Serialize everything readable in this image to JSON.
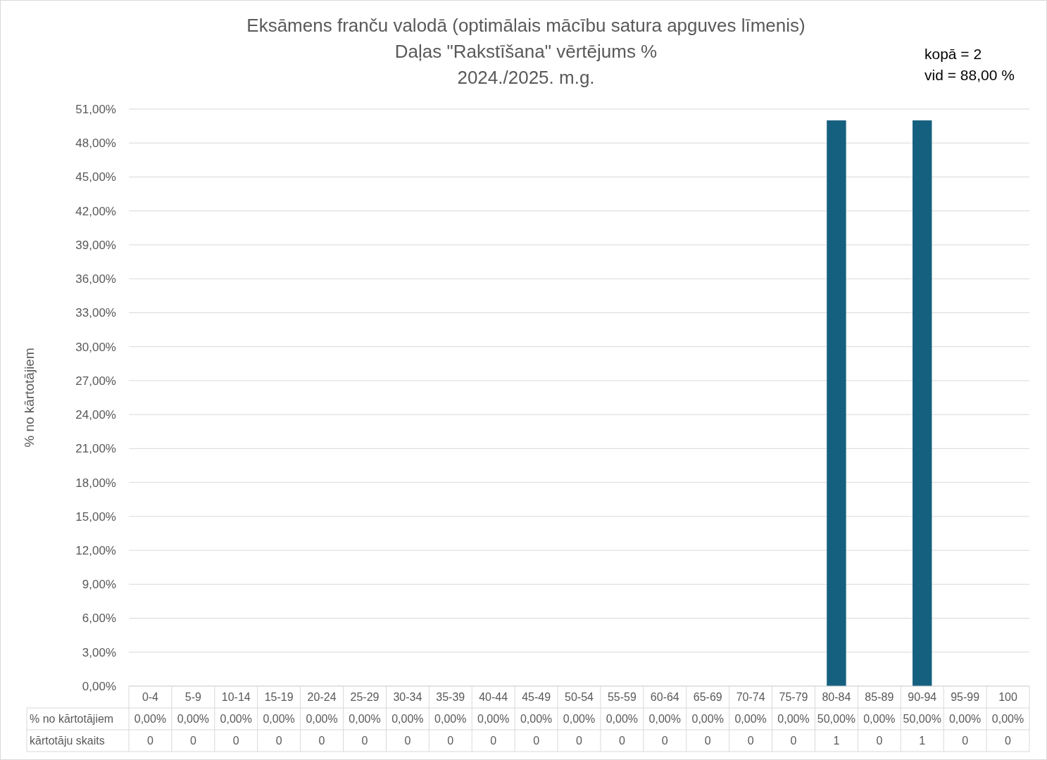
{
  "chart_data": {
    "type": "bar",
    "title": "Eksāmens franču valodā (optimālais mācību satura apguves līmenis)",
    "subtitle": "Daļas \"Rakstīšana\" vērtējums %\n2024./2025. m.g.",
    "ylabel": "% no kārtotājiem",
    "categories": [
      "0-4",
      "5-9",
      "10-14",
      "15-19",
      "20-24",
      "25-29",
      "30-34",
      "35-39",
      "40-44",
      "45-49",
      "50-54",
      "55-59",
      "60-64",
      "65-69",
      "70-74",
      "75-79",
      "80-84",
      "85-89",
      "90-94",
      "95-99",
      "100"
    ],
    "series": [
      {
        "name": "% no kārtotājiem",
        "color": "#16607f",
        "values": [
          0,
          0,
          0,
          0,
          0,
          0,
          0,
          0,
          0,
          0,
          0,
          0,
          0,
          0,
          0,
          0,
          50,
          0,
          50,
          0,
          0
        ],
        "value_labels": [
          "0,00%",
          "0,00%",
          "0,00%",
          "0,00%",
          "0,00%",
          "0,00%",
          "0,00%",
          "0,00%",
          "0,00%",
          "0,00%",
          "0,00%",
          "0,00%",
          "0,00%",
          "0,00%",
          "0,00%",
          "0,00%",
          "50,00%",
          "0,00%",
          "50,00%",
          "0,00%",
          "0,00%"
        ]
      },
      {
        "name": "kārtotāju skaits",
        "type": "other",
        "values": [
          null,
          null,
          null,
          null,
          null,
          null,
          null,
          null,
          null,
          null,
          null,
          null,
          null,
          null,
          null,
          null,
          null,
          null,
          null,
          null,
          null
        ],
        "value_labels": [
          "0",
          "0",
          "0",
          "0",
          "0",
          "0",
          "0",
          "0",
          "0",
          "0",
          "0",
          "0",
          "0",
          "0",
          "0",
          "0",
          "1",
          "0",
          "1",
          "0",
          "0"
        ]
      }
    ],
    "ylim": [
      0,
      51
    ],
    "yticks": [
      {
        "value": 0,
        "label": "0,00%"
      },
      {
        "value": 3,
        "label": "3,00%"
      },
      {
        "value": 6,
        "label": "6,00%"
      },
      {
        "value": 9,
        "label": "9,00%"
      },
      {
        "value": 12,
        "label": "12,00%"
      },
      {
        "value": 15,
        "label": "15,00%"
      },
      {
        "value": 18,
        "label": "18,00%"
      },
      {
        "value": 21,
        "label": "21,00%"
      },
      {
        "value": 24,
        "label": "24,00%"
      },
      {
        "value": 27,
        "label": "27,00%"
      },
      {
        "value": 30,
        "label": "30,00%"
      },
      {
        "value": 33,
        "label": "33,00%"
      },
      {
        "value": 36,
        "label": "36,00%"
      },
      {
        "value": 39,
        "label": "39,00%"
      },
      {
        "value": 42,
        "label": "42,00%"
      },
      {
        "value": 45,
        "label": "45,00%"
      },
      {
        "value": 48,
        "label": "48,00%"
      },
      {
        "value": 51,
        "label": "51,00%"
      }
    ],
    "grid": "y",
    "legend": false,
    "annotations": [
      "kopā = 2",
      "vid = 88,00 %"
    ]
  }
}
